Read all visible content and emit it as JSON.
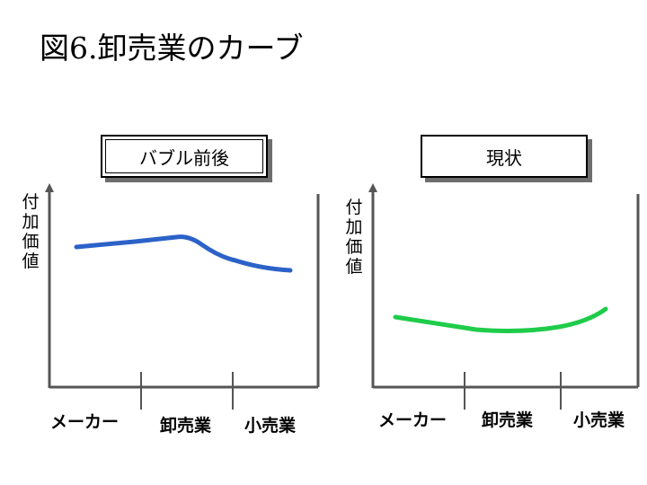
{
  "title": "図6.卸売業のカーブ",
  "panels": [
    {
      "box_label": "バブル前後",
      "y_axis_label": "付加価値",
      "stages": [
        "メーカー",
        "卸売業",
        "小売業"
      ],
      "curve_color": "#2c62c8"
    },
    {
      "box_label": "現状",
      "y_axis_label": "付加価値",
      "stages": [
        "メーカー",
        "卸売業",
        "小売業"
      ],
      "curve_color": "#1fcc4a"
    }
  ]
}
